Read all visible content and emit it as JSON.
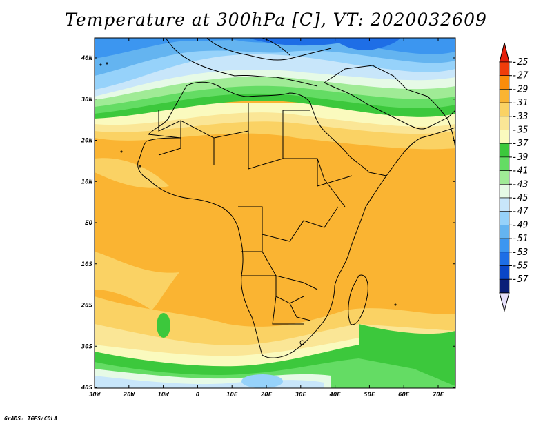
{
  "title": "Temperature at 300hPa [C], VT: 2020032609",
  "credit": "GrADS: IGES/COLA",
  "map": {
    "lat_labels": [
      "40N",
      "30N",
      "20N",
      "10N",
      "EQ",
      "10S",
      "20S",
      "30S",
      "40S"
    ],
    "lon_labels": [
      "30W",
      "20W",
      "10W",
      "0",
      "10E",
      "20E",
      "30E",
      "40E",
      "50E",
      "60E",
      "70E"
    ],
    "lat_range": [
      -40,
      45
    ],
    "lon_range": [
      -30,
      75
    ]
  },
  "colorbar": {
    "labels": [
      "-25",
      "-27",
      "-29",
      "-31",
      "-33",
      "-35",
      "-37",
      "-39",
      "-41",
      "-43",
      "-45",
      "-47",
      "-49",
      "-51",
      "-53",
      "-55",
      "-57"
    ],
    "colors": [
      "#f03c0a",
      "#fa8c0a",
      "#fab432",
      "#fad264",
      "#fae696",
      "#fafabe",
      "#3cc83c",
      "#64dc64",
      "#a0eb96",
      "#e6fae6",
      "#c8e6fa",
      "#96d2fa",
      "#64b4f0",
      "#3c96f0",
      "#1e6ee6",
      "#0a46c8",
      "#0a1e78"
    ],
    "over_color": "#e61e0a",
    "under_color": "#e6e0fa"
  }
}
